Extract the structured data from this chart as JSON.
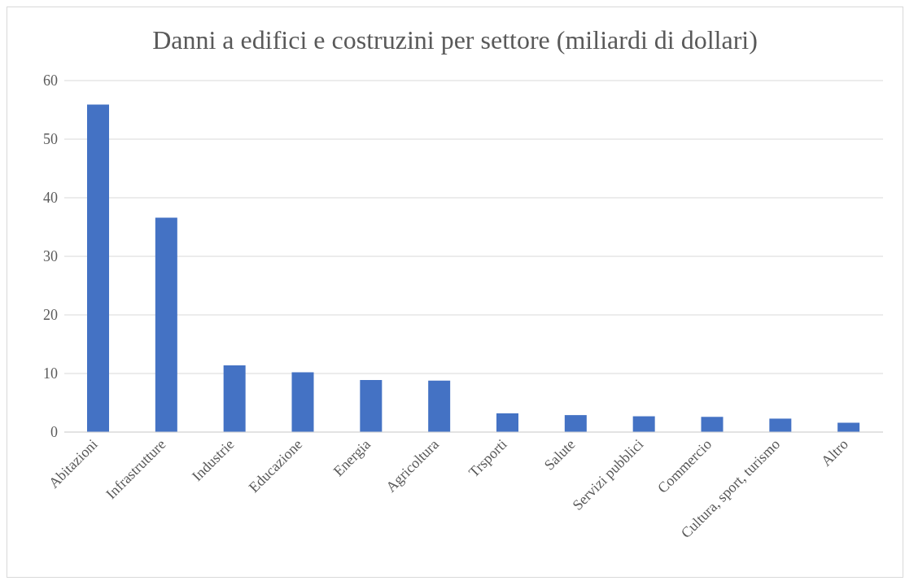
{
  "chart_data": {
    "type": "bar",
    "title": "Danni a edifici e costruzini per settore (miliardi di dollari)",
    "categories": [
      "Abitazioni",
      "Infrastrutture",
      "Industrie",
      "Educazione",
      "Energia",
      "Agricoltura",
      "Trsporti",
      "Salute",
      "Servizi pubblici",
      "Commercio",
      "Cultura, sport, turismo",
      "Altro"
    ],
    "values": [
      55.9,
      36.6,
      11.4,
      10.2,
      8.9,
      8.8,
      3.2,
      2.9,
      2.7,
      2.6,
      2.3,
      1.6
    ],
    "color": "#4472c4",
    "ylim": [
      0,
      60
    ],
    "yticks": [
      0,
      10,
      20,
      30,
      40,
      50,
      60
    ],
    "grid": "y"
  }
}
